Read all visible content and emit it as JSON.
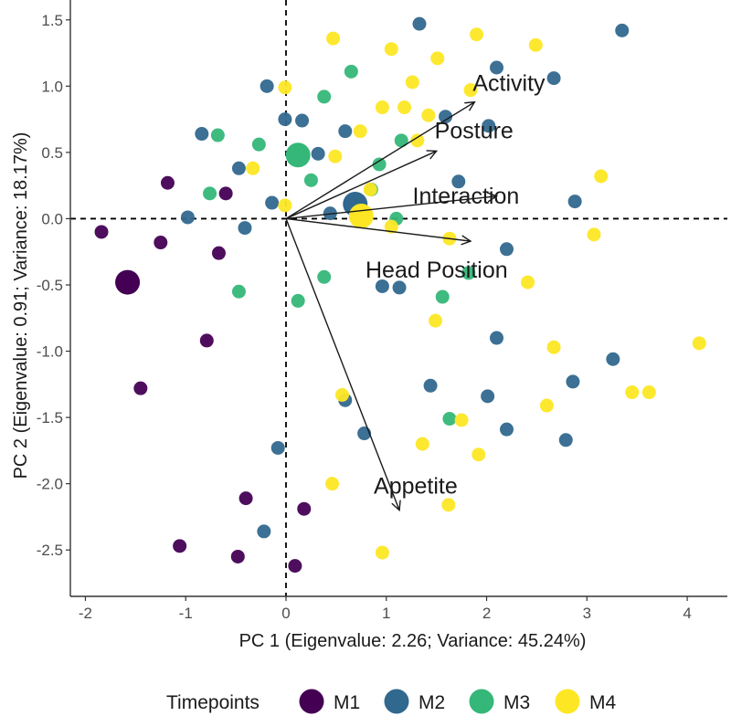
{
  "chart_data": {
    "type": "scatter",
    "title": "",
    "xlabel": "PC 1 (Eigenvalue: 2.26; Variance: 45.24%)",
    "ylabel": "PC 2 (Eigenvalue: 0.91; Variance: 18.17%)",
    "xlim": [
      -2.15,
      4.4
    ],
    "ylim": [
      -2.85,
      1.65
    ],
    "xticks": [
      -2,
      -1,
      0,
      1,
      2,
      3,
      4
    ],
    "yticks": [
      -2.5,
      -2.0,
      -1.5,
      -1.0,
      -0.5,
      0.0,
      0.5,
      1.0,
      1.5
    ],
    "ytick_labels": [
      "-2.5",
      "-2.0",
      "-1.5",
      "-1.0",
      "-0.5",
      "0.0",
      "0.5",
      "1.0",
      "1.5"
    ],
    "grid": false,
    "reference_lines": {
      "x": 0,
      "y": 0,
      "style": "dashed"
    },
    "legend": {
      "title": "Timepoints",
      "position": "bottom",
      "entries": [
        {
          "name": "M1",
          "color": "#440154"
        },
        {
          "name": "M2",
          "color": "#31688e"
        },
        {
          "name": "M3",
          "color": "#35b779"
        },
        {
          "name": "M4",
          "color": "#fde725"
        }
      ]
    },
    "series": [
      {
        "name": "M1",
        "color": "#440154",
        "centroid": {
          "x": -1.58,
          "y": -0.48
        },
        "points": [
          {
            "x": -1.84,
            "y": -0.1
          },
          {
            "x": -1.25,
            "y": -0.18
          },
          {
            "x": -1.18,
            "y": 0.27
          },
          {
            "x": -0.6,
            "y": 0.19
          },
          {
            "x": -0.67,
            "y": -0.26
          },
          {
            "x": -0.79,
            "y": -0.92
          },
          {
            "x": -1.45,
            "y": -1.28
          },
          {
            "x": -0.4,
            "y": -2.11
          },
          {
            "x": 0.18,
            "y": -2.19
          },
          {
            "x": -1.06,
            "y": -2.47
          },
          {
            "x": -0.48,
            "y": -2.55
          },
          {
            "x": 0.09,
            "y": -2.62
          }
        ]
      },
      {
        "name": "M2",
        "color": "#31688e",
        "centroid": {
          "x": 0.69,
          "y": 0.11
        },
        "points": [
          {
            "x": 1.33,
            "y": 1.47
          },
          {
            "x": 3.35,
            "y": 1.42
          },
          {
            "x": 2.1,
            "y": 1.14
          },
          {
            "x": 2.67,
            "y": 1.06
          },
          {
            "x": -0.19,
            "y": 1.0
          },
          {
            "x": -0.01,
            "y": 0.75
          },
          {
            "x": 0.16,
            "y": 0.74
          },
          {
            "x": 0.59,
            "y": 0.66
          },
          {
            "x": 1.59,
            "y": 0.77
          },
          {
            "x": 2.02,
            "y": 0.7
          },
          {
            "x": -0.84,
            "y": 0.64
          },
          {
            "x": 0.32,
            "y": 0.49
          },
          {
            "x": -0.47,
            "y": 0.38
          },
          {
            "x": 1.72,
            "y": 0.28
          },
          {
            "x": -0.14,
            "y": 0.12
          },
          {
            "x": 0.44,
            "y": 0.04
          },
          {
            "x": -0.98,
            "y": 0.01
          },
          {
            "x": -0.41,
            "y": -0.07
          },
          {
            "x": 2.88,
            "y": 0.13
          },
          {
            "x": 2.2,
            "y": -0.23
          },
          {
            "x": 0.96,
            "y": -0.51
          },
          {
            "x": 1.13,
            "y": -0.52
          },
          {
            "x": 2.1,
            "y": -0.9
          },
          {
            "x": 3.26,
            "y": -1.06
          },
          {
            "x": 2.86,
            "y": -1.23
          },
          {
            "x": 1.44,
            "y": -1.26
          },
          {
            "x": 2.01,
            "y": -1.34
          },
          {
            "x": 0.59,
            "y": -1.37
          },
          {
            "x": 2.2,
            "y": -1.59
          },
          {
            "x": 0.78,
            "y": -1.62
          },
          {
            "x": 2.79,
            "y": -1.67
          },
          {
            "x": -0.08,
            "y": -1.73
          },
          {
            "x": -0.22,
            "y": -2.36
          }
        ]
      },
      {
        "name": "M3",
        "color": "#35b779",
        "centroid": {
          "x": 0.12,
          "y": 0.48
        },
        "points": [
          {
            "x": 0.65,
            "y": 1.11
          },
          {
            "x": 0.38,
            "y": 0.92
          },
          {
            "x": -0.68,
            "y": 0.63
          },
          {
            "x": -0.27,
            "y": 0.56
          },
          {
            "x": 1.15,
            "y": 0.59
          },
          {
            "x": 0.93,
            "y": 0.41
          },
          {
            "x": 0.25,
            "y": 0.29
          },
          {
            "x": -0.76,
            "y": 0.19
          },
          {
            "x": 0.85,
            "y": 0.22
          },
          {
            "x": 0.38,
            "y": -0.44
          },
          {
            "x": -0.47,
            "y": -0.55
          },
          {
            "x": 0.12,
            "y": -0.62
          },
          {
            "x": 1.82,
            "y": -0.41
          },
          {
            "x": 1.56,
            "y": -0.59
          },
          {
            "x": 1.63,
            "y": -1.51
          },
          {
            "x": 1.1,
            "y": 0.0
          }
        ]
      },
      {
        "name": "M4",
        "color": "#fde725",
        "centroid": {
          "x": 0.75,
          "y": 0.02
        },
        "points": [
          {
            "x": 0.47,
            "y": 1.36
          },
          {
            "x": 1.9,
            "y": 1.39
          },
          {
            "x": 2.49,
            "y": 1.31
          },
          {
            "x": 1.05,
            "y": 1.28
          },
          {
            "x": 1.51,
            "y": 1.21
          },
          {
            "x": -0.01,
            "y": 0.99
          },
          {
            "x": 1.26,
            "y": 1.03
          },
          {
            "x": 1.84,
            "y": 0.97
          },
          {
            "x": 0.96,
            "y": 0.84
          },
          {
            "x": 1.18,
            "y": 0.84
          },
          {
            "x": 1.42,
            "y": 0.78
          },
          {
            "x": 0.74,
            "y": 0.66
          },
          {
            "x": 1.31,
            "y": 0.59
          },
          {
            "x": 0.49,
            "y": 0.47
          },
          {
            "x": -0.33,
            "y": 0.38
          },
          {
            "x": 3.14,
            "y": 0.32
          },
          {
            "x": 0.84,
            "y": 0.22
          },
          {
            "x": -0.01,
            "y": 0.1
          },
          {
            "x": 1.05,
            "y": -0.06
          },
          {
            "x": 1.63,
            "y": -0.15
          },
          {
            "x": 3.07,
            "y": -0.12
          },
          {
            "x": 2.41,
            "y": -0.48
          },
          {
            "x": 1.49,
            "y": -0.77
          },
          {
            "x": 2.67,
            "y": -0.97
          },
          {
            "x": 4.12,
            "y": -0.94
          },
          {
            "x": 3.45,
            "y": -1.31
          },
          {
            "x": 3.62,
            "y": -1.31
          },
          {
            "x": 0.56,
            "y": -1.33
          },
          {
            "x": 2.6,
            "y": -1.41
          },
          {
            "x": 1.75,
            "y": -1.52
          },
          {
            "x": 1.36,
            "y": -1.7
          },
          {
            "x": 1.92,
            "y": -1.78
          },
          {
            "x": 0.46,
            "y": -2.0
          },
          {
            "x": 1.62,
            "y": -2.16
          },
          {
            "x": 0.96,
            "y": -2.52
          }
        ]
      }
    ],
    "loadings": [
      {
        "name": "Activity",
        "x": 1.88,
        "y": 0.88
      },
      {
        "name": "Posture",
        "x": 1.5,
        "y": 0.51
      },
      {
        "name": "Interaction",
        "x": 2.1,
        "y": 0.17
      },
      {
        "name": "Head Position",
        "x": 1.84,
        "y": -0.17
      },
      {
        "name": "Appetite",
        "x": 1.13,
        "y": -2.2
      }
    ]
  }
}
